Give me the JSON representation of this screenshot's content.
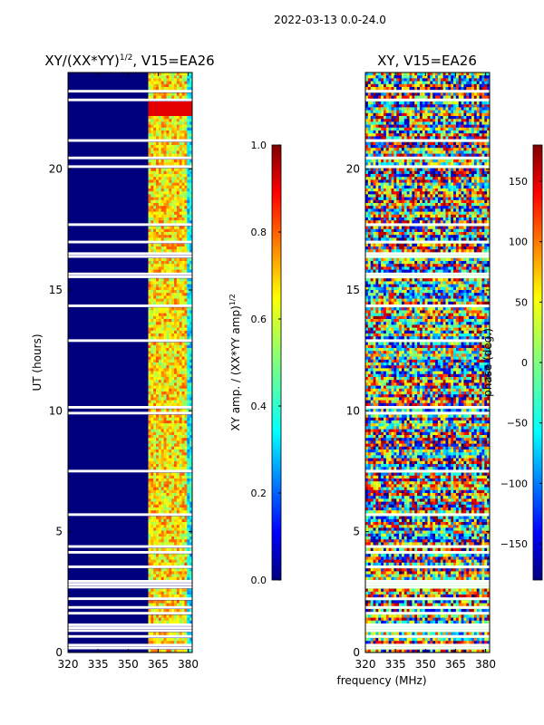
{
  "figure": {
    "suptitle": "2022-03-13 0.0-24.0",
    "shared_xlabel": "frequency (MHz)"
  },
  "chart_data": [
    {
      "type": "heatmap",
      "title_prefix": "XY/(XX*YY)",
      "title_sup": "1/2",
      "title_suffix": ", V15=EA26",
      "ylabel": "UT (hours)",
      "xlim": [
        320,
        382
      ],
      "ylim": [
        0,
        24
      ],
      "xticks": [
        "320",
        "335",
        "350",
        "365",
        "380"
      ],
      "xtick_values": [
        320,
        335,
        350,
        365,
        380
      ],
      "yticks": [
        "0",
        "5",
        "10",
        "15",
        "20"
      ],
      "ytick_values": [
        0,
        5,
        10,
        15,
        20
      ],
      "colorbar": {
        "label_main": "XY amp. / (XX*YY amp)",
        "label_sup": "1/2",
        "range": [
          0.0,
          1.0
        ],
        "ticks": [
          "0.0",
          "0.2",
          "0.4",
          "0.6",
          "0.8",
          "1.0"
        ],
        "tick_values": [
          0.0,
          0.2,
          0.4,
          0.6,
          0.8,
          1.0
        ],
        "colormap": "jet"
      }
    },
    {
      "type": "heatmap",
      "title": "XY, V15=EA26",
      "ylabel": "",
      "xlim": [
        320,
        382
      ],
      "ylim": [
        0,
        24
      ],
      "xticks": [
        "320",
        "335",
        "350",
        "365",
        "380"
      ],
      "xtick_values": [
        320,
        335,
        350,
        365,
        380
      ],
      "yticks": [
        "0",
        "5",
        "10",
        "15",
        "20"
      ],
      "ytick_values": [
        0,
        5,
        10,
        15,
        20
      ],
      "colorbar": {
        "label": "phase (deg.)",
        "range": [
          -180,
          180
        ],
        "ticks": [
          "−150",
          "−100",
          "−50",
          "0",
          "50",
          "100",
          "150"
        ],
        "tick_values": [
          -150,
          -100,
          -50,
          0,
          50,
          100,
          150
        ],
        "colormap": "jet"
      }
    }
  ],
  "colors": {
    "background": "#ffffff",
    "axis": "#000000",
    "cmap_low": "#00007f",
    "cmap_high": "#7f0000"
  }
}
